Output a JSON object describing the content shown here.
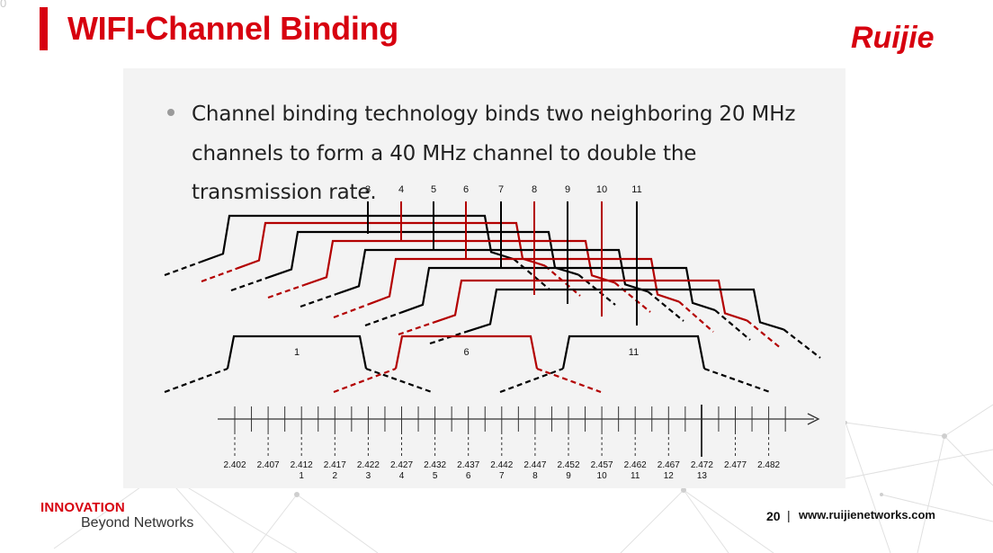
{
  "corner_text": "0",
  "header": {
    "title": "WIFI-Channel Binding",
    "logo_text": "Ruijie"
  },
  "bullet_text": "Channel binding technology binds two neighboring 20 MHz channels to form a 40 MHz channel to double the transmission rate.",
  "diagram": {
    "top_channel_labels": [
      "3",
      "4",
      "5",
      "6",
      "7",
      "8",
      "9",
      "10",
      "11"
    ],
    "base_channel_labels": [
      "1",
      "6",
      "11"
    ],
    "frequency_labels": [
      "2.402",
      "2.407",
      "2.412",
      "2.417",
      "2.422",
      "2.427",
      "2.432",
      "2.437",
      "2.442",
      "2.447",
      "2.452",
      "2.457",
      "2.462",
      "2.467",
      "2.472",
      "2.477",
      "2.482"
    ],
    "channel_numbers": [
      "1",
      "2",
      "3",
      "4",
      "5",
      "6",
      "7",
      "8",
      "9",
      "10",
      "11",
      "12",
      "13"
    ],
    "colors": {
      "primary": "#000000",
      "accent": "#b30000"
    }
  },
  "footer": {
    "brand_line1": "INNOVATION",
    "brand_line2": "Beyond Networks",
    "page_number": "20",
    "separator": "|",
    "website": "www.ruijienetworks.com"
  }
}
